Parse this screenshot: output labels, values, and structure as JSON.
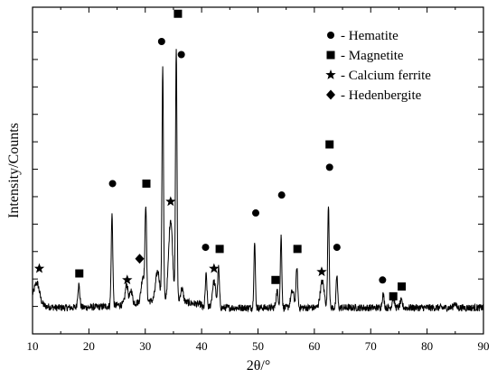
{
  "chart_data": {
    "type": "line",
    "xlabel": "2θ/°",
    "ylabel": "Intensity/Counts",
    "xlim": [
      10,
      90
    ],
    "ylim": [
      0,
      100
    ],
    "x_ticks": [
      "10",
      "20",
      "30",
      "40",
      "50",
      "60",
      "70",
      "80",
      "90"
    ],
    "y_tick_labels_shown": false,
    "legend_position": "top-right",
    "line_color": "#000000",
    "legend": [
      {
        "marker": "circle",
        "label": "- Hematite"
      },
      {
        "marker": "square",
        "label": "- Magnetite"
      },
      {
        "marker": "star",
        "label": "- Calcium ferrite"
      },
      {
        "marker": "diamond",
        "label": "- Hedenbergite"
      }
    ],
    "series": [
      {
        "baseline": 8,
        "peaks": [
          {
            "x": 10.8,
            "y": 14,
            "w": 0.45
          },
          {
            "x": 18.2,
            "y": 15,
            "w": 0.18
          },
          {
            "x": 24.1,
            "y": 36,
            "w": 0.14
          },
          {
            "x": 26.7,
            "y": 14,
            "w": 0.25
          },
          {
            "x": 27.5,
            "y": 12,
            "w": 0.2
          },
          {
            "x": 29.6,
            "y": 16,
            "w": 0.3
          },
          {
            "x": 30.1,
            "y": 36,
            "w": 0.14
          },
          {
            "x": 32.2,
            "y": 17,
            "w": 0.35
          },
          {
            "x": 33.1,
            "y": 80,
            "w": 0.13
          },
          {
            "x": 34.5,
            "y": 33,
            "w": 0.35
          },
          {
            "x": 35.5,
            "y": 85,
            "w": 0.13
          },
          {
            "x": 36.5,
            "y": 12,
            "w": 0.25
          },
          {
            "x": 40.8,
            "y": 18,
            "w": 0.15
          },
          {
            "x": 42.2,
            "y": 16,
            "w": 0.3
          },
          {
            "x": 43.0,
            "y": 20,
            "w": 0.15
          },
          {
            "x": 49.4,
            "y": 28,
            "w": 0.13
          },
          {
            "x": 53.4,
            "y": 13,
            "w": 0.2
          },
          {
            "x": 54.1,
            "y": 30,
            "w": 0.13
          },
          {
            "x": 56.1,
            "y": 13,
            "w": 0.3
          },
          {
            "x": 56.9,
            "y": 20,
            "w": 0.15
          },
          {
            "x": 61.4,
            "y": 16,
            "w": 0.35
          },
          {
            "x": 62.5,
            "y": 40,
            "w": 0.13
          },
          {
            "x": 64.0,
            "y": 18,
            "w": 0.13
          },
          {
            "x": 72.2,
            "y": 12,
            "w": 0.18
          },
          {
            "x": 74.0,
            "y": 11,
            "w": 0.2
          },
          {
            "x": 75.4,
            "y": 10,
            "w": 0.2
          },
          {
            "x": 84.9,
            "y": 9.5,
            "w": 0.2
          }
        ]
      }
    ],
    "markers": [
      {
        "type": "star",
        "x": 11.2,
        "y": 20
      },
      {
        "type": "square",
        "x": 18.3,
        "y": 18.5
      },
      {
        "type": "circle",
        "x": 24.2,
        "y": 46
      },
      {
        "type": "star",
        "x": 26.8,
        "y": 16.5
      },
      {
        "type": "diamond",
        "x": 29.0,
        "y": 23
      },
      {
        "type": "square",
        "x": 30.2,
        "y": 46
      },
      {
        "type": "circle",
        "x": 32.9,
        "y": 89.5
      },
      {
        "type": "star",
        "x": 34.5,
        "y": 40.5
      },
      {
        "type": "square",
        "x": 35.8,
        "y": 98
      },
      {
        "type": "circle",
        "x": 36.4,
        "y": 85.5
      },
      {
        "type": "circle",
        "x": 40.7,
        "y": 26.5
      },
      {
        "type": "star",
        "x": 42.2,
        "y": 20
      },
      {
        "type": "square",
        "x": 43.2,
        "y": 26
      },
      {
        "type": "circle",
        "x": 49.6,
        "y": 37
      },
      {
        "type": "square",
        "x": 53.1,
        "y": 16.5
      },
      {
        "type": "circle",
        "x": 54.2,
        "y": 42.5
      },
      {
        "type": "square",
        "x": 57.0,
        "y": 26
      },
      {
        "type": "star",
        "x": 61.3,
        "y": 19
      },
      {
        "type": "square",
        "x": 62.7,
        "y": 58
      },
      {
        "type": "circle",
        "x": 62.7,
        "y": 51
      },
      {
        "type": "circle",
        "x": 64.0,
        "y": 26.5
      },
      {
        "type": "circle",
        "x": 72.1,
        "y": 16.5
      },
      {
        "type": "square",
        "x": 74.0,
        "y": 11.5
      },
      {
        "type": "square",
        "x": 75.5,
        "y": 14.5
      }
    ]
  }
}
